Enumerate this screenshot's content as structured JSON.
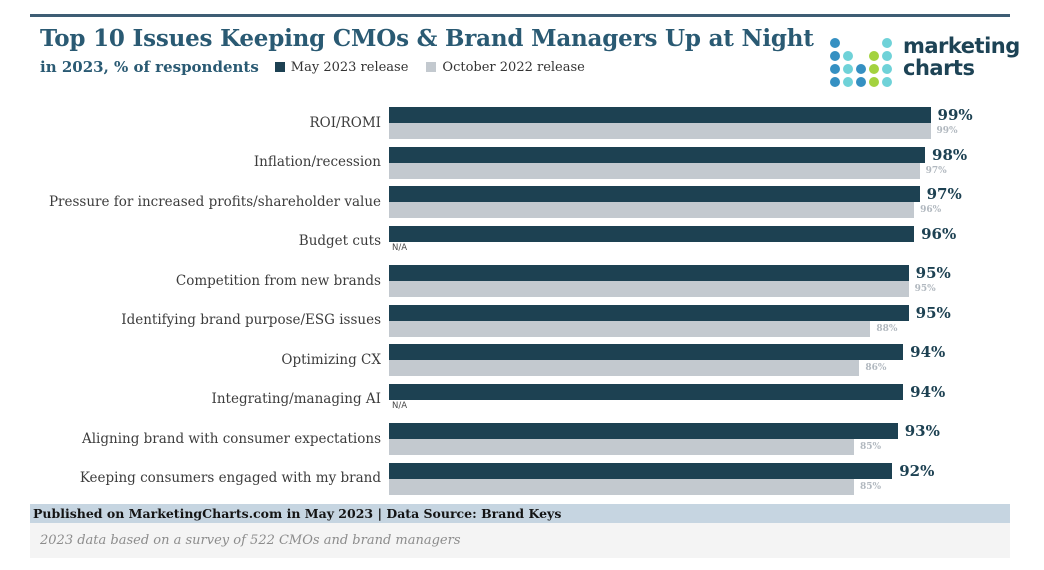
{
  "header": {
    "title": "Top 10 Issues Keeping CMOs & Brand Managers Up at Night",
    "subtitle": "in 2023, % of respondents",
    "legend": [
      {
        "label": "May 2023 release",
        "color": "#1d4152"
      },
      {
        "label": "October 2022 release",
        "color": "#c3c9cf"
      }
    ]
  },
  "logo": {
    "line1": "marketing",
    "line2": "charts",
    "dot_colors": {
      "b": "#3590c2",
      "t": "#6fd2d8",
      "g": "#a3d23f"
    },
    "dot_grid": [
      [
        "b",
        "",
        "",
        "",
        "t"
      ],
      [
        "b",
        "t",
        "",
        "g",
        "t"
      ],
      [
        "b",
        "t",
        "b",
        "g",
        "t"
      ],
      [
        "b",
        "t",
        "b",
        "g",
        "t"
      ]
    ]
  },
  "chart_data": {
    "type": "bar",
    "orientation": "horizontal",
    "title": "Top 10 Issues Keeping CMOs & Brand Managers Up at Night",
    "subtitle": "in 2023, % of respondents",
    "categories": [
      "ROI/ROMI",
      "Inflation/recession",
      "Pressure for increased profits/shareholder value",
      "Budget cuts",
      "Competition from new brands",
      "Identifying brand purpose/ESG issues",
      "Optimizing CX",
      "Integrating/managing AI",
      "Aligning brand with consumer expectations",
      "Keeping consumers engaged with my brand"
    ],
    "series": [
      {
        "name": "May 2023 release",
        "color": "#1d4152",
        "values": [
          99,
          98,
          97,
          96,
          95,
          95,
          94,
          94,
          93,
          92
        ]
      },
      {
        "name": "October 2022 release",
        "color": "#c3c9cf",
        "values": [
          99,
          97,
          96,
          null,
          95,
          88,
          86,
          null,
          85,
          85
        ]
      }
    ],
    "na_label": "N/A",
    "value_suffix": "%",
    "xlim": [
      0,
      100
    ],
    "grid": false,
    "legend_position": "top"
  },
  "footer": {
    "published": "Published on MarketingCharts.com in May 2023 | Data Source: Brand Keys",
    "note": "2023 data based on a survey of 522 CMOs and brand managers"
  }
}
